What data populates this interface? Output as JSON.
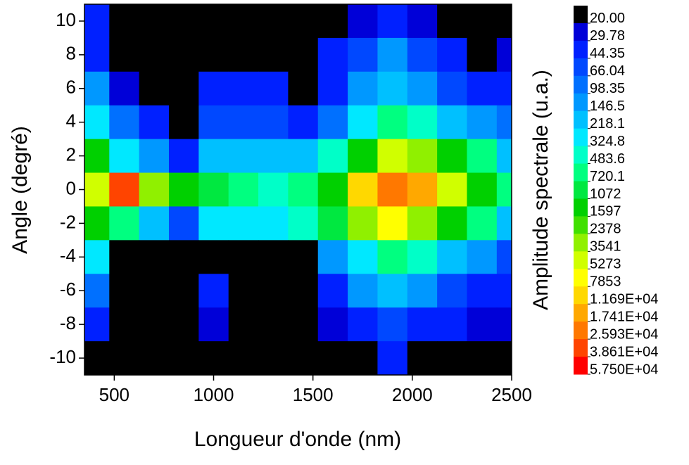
{
  "chart_data": {
    "type": "contour",
    "xlabel": "Longueur d'onde (nm)",
    "ylabel": "Angle (degré)",
    "colorbar_label": "Amplitude spectrale (u.a.)",
    "xlim": [
      350,
      2500
    ],
    "ylim": [
      -11,
      11
    ],
    "xticks": [
      500,
      1000,
      1500,
      2000,
      2500
    ],
    "yticks": [
      -10,
      -8,
      -6,
      -4,
      -2,
      0,
      2,
      4,
      6,
      8,
      10
    ],
    "x": [
      400,
      550,
      700,
      850,
      1000,
      1150,
      1300,
      1450,
      1600,
      1750,
      1900,
      2050,
      2200,
      2350,
      2500
    ],
    "y": [
      10,
      8,
      6,
      4,
      2,
      0,
      -2,
      -4,
      -6,
      -8,
      -10
    ],
    "z": [
      [
        30,
        0,
        0,
        0,
        0,
        0,
        0,
        0,
        0,
        25,
        40,
        25,
        0,
        0,
        0
      ],
      [
        40,
        0,
        0,
        0,
        0,
        0,
        0,
        0,
        30,
        60,
        100,
        60,
        30,
        0,
        25
      ],
      [
        100,
        25,
        0,
        0,
        40,
        40,
        30,
        0,
        40,
        100,
        200,
        120,
        60,
        40,
        40
      ],
      [
        300,
        80,
        30,
        0,
        60,
        60,
        60,
        40,
        80,
        250,
        500,
        350,
        200,
        120,
        80
      ],
      [
        1500,
        300,
        100,
        40,
        200,
        150,
        150,
        200,
        400,
        1500,
        4000,
        2500,
        1200,
        500,
        200
      ],
      [
        4000,
        30000,
        3000,
        1500,
        800,
        500,
        400,
        700,
        1500,
        8000,
        25000,
        12000,
        4000,
        1500,
        600
      ],
      [
        1500,
        500,
        150,
        60,
        250,
        300,
        300,
        400,
        800,
        3000,
        6000,
        3000,
        1200,
        500,
        200
      ],
      [
        300,
        0,
        0,
        0,
        0,
        0,
        0,
        0,
        100,
        300,
        600,
        400,
        200,
        100,
        60
      ],
      [
        80,
        0,
        0,
        0,
        30,
        0,
        0,
        0,
        40,
        100,
        200,
        120,
        60,
        40,
        30
      ],
      [
        30,
        0,
        0,
        0,
        25,
        0,
        0,
        0,
        25,
        40,
        60,
        40,
        30,
        25,
        25
      ],
      [
        0,
        0,
        0,
        0,
        0,
        0,
        0,
        0,
        0,
        0,
        30,
        0,
        0,
        0,
        0
      ]
    ],
    "levels": [
      {
        "value": 20,
        "label": "20.00"
      },
      29.78,
      44.35,
      66.04,
      98.35,
      146.5,
      218.1,
      324.8,
      483.6,
      720.1,
      1072,
      1597,
      2378,
      3541,
      5273,
      7853,
      {
        "value": 11690,
        "label": "1.169E+04"
      },
      {
        "value": 17410,
        "label": "1.741E+04"
      },
      {
        "value": 25930,
        "label": "2.593E+04"
      },
      {
        "value": 38610,
        "label": "3.861E+04"
      },
      {
        "value": 57500,
        "label": "5.750E+04"
      }
    ],
    "colors": [
      "#000000",
      "#0000d8",
      "#0020ff",
      "#0048ff",
      "#0070ff",
      "#0098ff",
      "#00c0ff",
      "#00e8ff",
      "#00ffc8",
      "#00ff80",
      "#00e840",
      "#00d000",
      "#40e000",
      "#90f000",
      "#d0ff00",
      "#ffff00",
      "#ffd800",
      "#ffa800",
      "#ff7800",
      "#ff4400",
      "#ff0000"
    ]
  }
}
